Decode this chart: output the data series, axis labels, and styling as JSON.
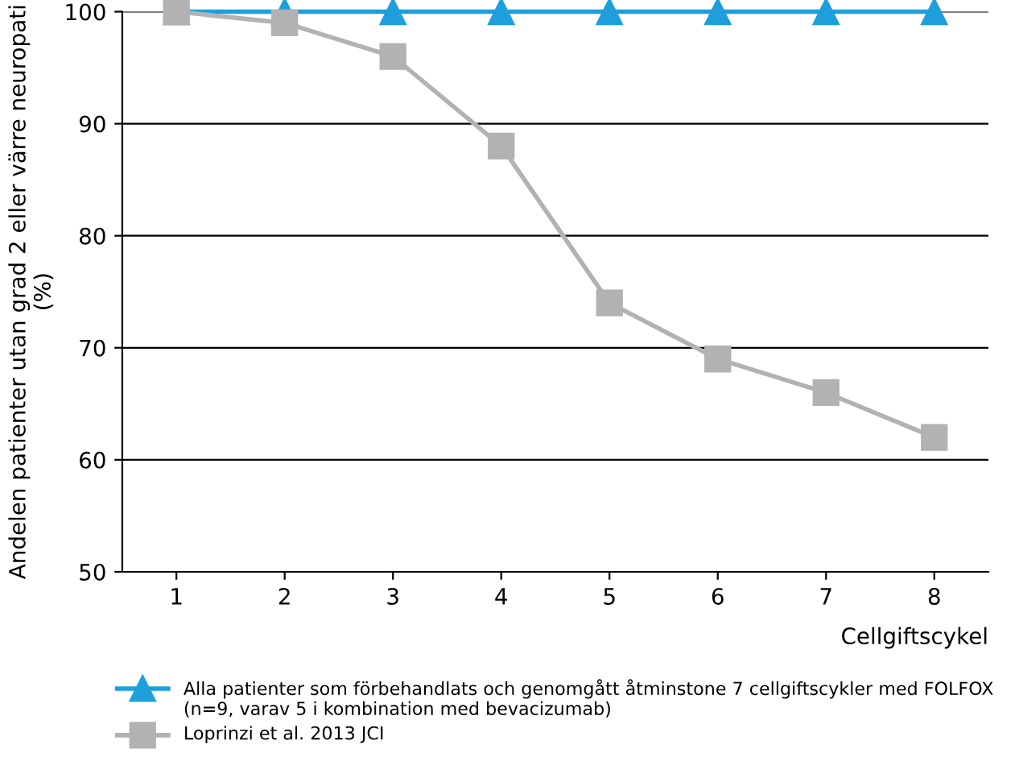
{
  "chart_data": {
    "type": "line",
    "categories": [
      "1",
      "2",
      "3",
      "4",
      "5",
      "6",
      "7",
      "8"
    ],
    "xlabel": "Cellgiftscykel",
    "ylabel": "Andelen patienter utan grad 2 eller värre neuropati (%)",
    "series": [
      {
        "name": "Alla patienter som förbehandlats och genomgått åtminstone 7 cellgiftscykler med FOLFOX (n=9, varav 5 i kombination med bevacizumab)",
        "color": "#1e9fdc",
        "marker": "triangle",
        "values": [
          100,
          100,
          100,
          100,
          100,
          100,
          100,
          100
        ]
      },
      {
        "name": "Loprinzi et al. 2013 JCI",
        "color": "#b2b2b2",
        "marker": "square",
        "values": [
          100,
          99,
          96,
          88,
          74,
          69,
          66,
          62
        ]
      }
    ],
    "ylim": [
      50,
      100
    ],
    "yticks": [
      50,
      60,
      70,
      80,
      90,
      100
    ],
    "grid": "y",
    "legend": "bottom",
    "line_style": "solid"
  }
}
